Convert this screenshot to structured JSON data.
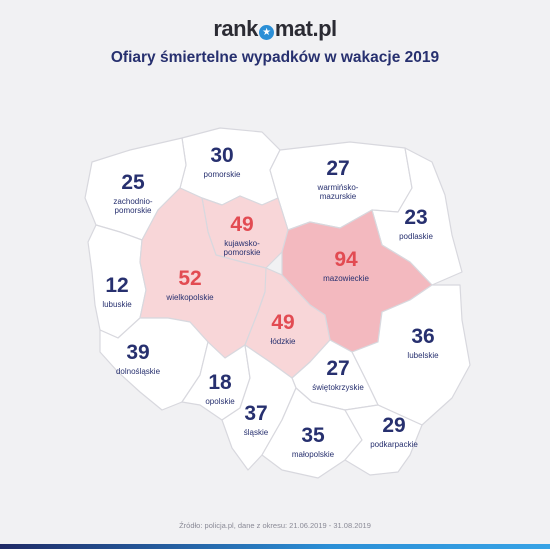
{
  "brand": {
    "pre": "rank",
    "glyph": "★",
    "post": "mat.pl"
  },
  "title": "Ofiary śmiertelne wypadków w wakacje 2019",
  "source": "Źródło: policja.pl, dane z okresu: 21.06.2019 - 31.08.2019",
  "colors": {
    "default": "#ffffff",
    "high": "#f8d6d8",
    "highest": "#f3b9bf",
    "number": "#27306f",
    "hot_number": "#e24b52"
  },
  "regions": [
    {
      "id": "pomorskie",
      "name": "pomorskie",
      "value": 30,
      "highlight": false
    },
    {
      "id": "zachodniopomorskie",
      "name": "zachodnio-\npomorskie",
      "value": 25,
      "highlight": false
    },
    {
      "id": "warminsko-mazurskie",
      "name": "warmińsko-\nmazurskie",
      "value": 27,
      "highlight": false
    },
    {
      "id": "podlaskie",
      "name": "podlaskie",
      "value": 23,
      "highlight": false
    },
    {
      "id": "kujawsko-pomorskie",
      "name": "kujawsko-\npomorskie",
      "value": 49,
      "highlight": true
    },
    {
      "id": "mazowieckie",
      "name": "mazowieckie",
      "value": 94,
      "highlight": true
    },
    {
      "id": "lubuskie",
      "name": "lubuskie",
      "value": 12,
      "highlight": false
    },
    {
      "id": "wielkopolskie",
      "name": "wielkopolskie",
      "value": 52,
      "highlight": true
    },
    {
      "id": "lodzkie",
      "name": "łódzkie",
      "value": 49,
      "highlight": true
    },
    {
      "id": "lubelskie",
      "name": "lubelskie",
      "value": 36,
      "highlight": false
    },
    {
      "id": "dolnoslaskie",
      "name": "dolnośląskie",
      "value": 39,
      "highlight": false
    },
    {
      "id": "opolskie",
      "name": "opolskie",
      "value": 18,
      "highlight": false
    },
    {
      "id": "swietokrzyskie",
      "name": "świętokrzyskie",
      "value": 27,
      "highlight": false
    },
    {
      "id": "slaskie",
      "name": "śląskie",
      "value": 37,
      "highlight": false
    },
    {
      "id": "malopolskie",
      "name": "małopolskie",
      "value": 35,
      "highlight": false
    },
    {
      "id": "podkarpackie",
      "name": "podkarpackie",
      "value": 29,
      "highlight": false
    }
  ]
}
